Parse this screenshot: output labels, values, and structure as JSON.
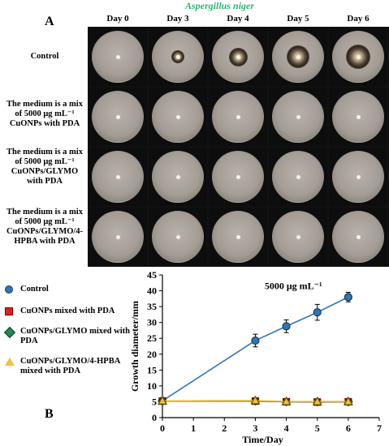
{
  "panel_a_label": "A",
  "panel_b_label": "B",
  "species": "Aspergillus niger",
  "days": [
    "Day 0",
    "Day 3",
    "Day 4",
    "Day 5",
    "Day 6"
  ],
  "treatment_rows": [
    {
      "lines": [
        "Control"
      ]
    },
    {
      "lines": [
        "The medium is a mix",
        "of 5000 μg mL⁻¹",
        "CuONPs with PDA"
      ]
    },
    {
      "lines": [
        "The medium is a mix",
        "of 5000 μg mL⁻¹",
        "CuONPs/GLYMO",
        "with PDA"
      ]
    },
    {
      "lines": [
        "The medium is a mix",
        "of 5000 μg mL⁻¹",
        "CuONPs/GLYMO/4-",
        "HPBA with PDA"
      ]
    }
  ],
  "plate_growth_fraction": [
    [
      0,
      0.42,
      0.58,
      0.7,
      0.78
    ],
    [
      0,
      0,
      0,
      0,
      0
    ],
    [
      0,
      0,
      0,
      0,
      0
    ],
    [
      0,
      0,
      0,
      0,
      0
    ]
  ],
  "legend": [
    {
      "label": "Control",
      "marker": "circle",
      "color": "#2e75b6"
    },
    {
      "label": "CuONPs mixed with PDA",
      "marker": "square",
      "color": "#e02020"
    },
    {
      "label": "CuONPs/GLYMO mixed with PDA",
      "marker": "diamond",
      "color": "#1f8a4c"
    },
    {
      "label": "CuONPs/GLYMO/4-HPBA mixed with PDA",
      "marker": "triangle",
      "color": "#f0c040"
    }
  ],
  "chart_data": {
    "type": "line",
    "title": "5000 μg mL⁻¹",
    "xlabel": "Time/Day",
    "ylabel": "Growth diameter/mm",
    "xlim": [
      0,
      7
    ],
    "ylim": [
      0,
      45
    ],
    "xticks": [
      0,
      1,
      2,
      3,
      4,
      5,
      6,
      7
    ],
    "yticks": [
      0,
      5,
      10,
      15,
      20,
      25,
      30,
      35,
      40,
      45
    ],
    "grid": false,
    "series": [
      {
        "name": "Control",
        "color": "#2e75b6",
        "marker": "circle",
        "x": [
          0,
          3,
          4,
          5,
          6
        ],
        "y": [
          5.3,
          24.3,
          28.8,
          33.2,
          38.0
        ],
        "err": [
          0.5,
          2.0,
          2.0,
          2.5,
          1.5
        ]
      },
      {
        "name": "CuONPs mixed with PDA",
        "color": "#e02020",
        "marker": "square",
        "x": [
          0,
          3,
          4,
          5,
          6
        ],
        "y": [
          5.2,
          5.2,
          5.0,
          4.9,
          5.0
        ],
        "err": [
          0.3,
          0.3,
          0.3,
          0.3,
          0.3
        ]
      },
      {
        "name": "CuONPs/GLYMO mixed with PDA",
        "color": "#1f8a4c",
        "marker": "diamond",
        "x": [
          0,
          3,
          4,
          5,
          6
        ],
        "y": [
          5.2,
          5.3,
          5.0,
          5.0,
          5.0
        ],
        "err": [
          0.3,
          0.3,
          0.3,
          0.3,
          0.3
        ]
      },
      {
        "name": "CuONPs/GLYMO/4-HPBA mixed with PDA",
        "color": "#f0c040",
        "marker": "triangle",
        "x": [
          0,
          3,
          4,
          5,
          6
        ],
        "y": [
          5.3,
          5.4,
          5.1,
          5.1,
          5.1
        ],
        "err": [
          0.3,
          0.3,
          0.3,
          0.3,
          0.3
        ]
      }
    ]
  }
}
